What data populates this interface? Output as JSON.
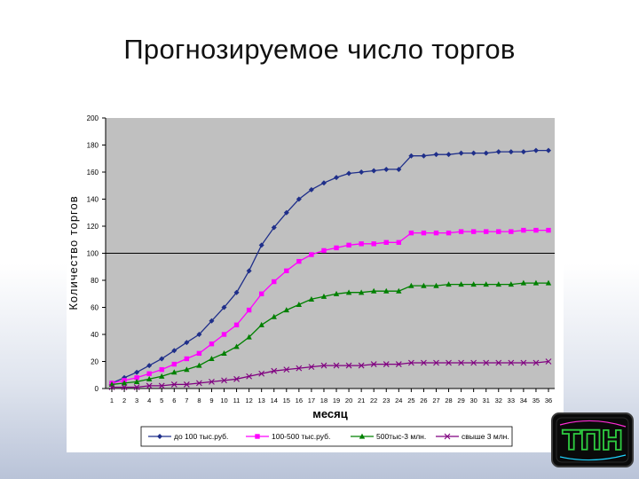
{
  "slide": {
    "title": "Прогнозируемое число торгов"
  },
  "chart_data": {
    "type": "line",
    "title": "Прогнозируемое число торгов",
    "xlabel": "месяц",
    "ylabel": "Количество торгов",
    "ylim": [
      0,
      200
    ],
    "yticks": [
      0,
      20,
      40,
      60,
      80,
      100,
      120,
      140,
      160,
      180,
      200
    ],
    "grid": "reference line at 100",
    "legend": "bottom",
    "x": [
      1,
      2,
      3,
      4,
      5,
      6,
      7,
      8,
      9,
      10,
      11,
      12,
      13,
      14,
      15,
      16,
      17,
      18,
      19,
      20,
      21,
      22,
      23,
      24,
      25,
      26,
      27,
      28,
      29,
      30,
      31,
      32,
      33,
      34,
      35,
      36
    ],
    "series": [
      {
        "name": "до 100 тыс.руб.",
        "color": "#1f2f8a",
        "marker": "diamond",
        "values": [
          4,
          8,
          12,
          17,
          22,
          28,
          34,
          40,
          50,
          60,
          71,
          87,
          106,
          119,
          130,
          140,
          147,
          152,
          156,
          159,
          160,
          161,
          162,
          162,
          172,
          172,
          173,
          173,
          174,
          174,
          174,
          175,
          175,
          175,
          176,
          176
        ]
      },
      {
        "name": "100-500 тыс.руб.",
        "color": "#ff00ff",
        "marker": "square",
        "values": [
          4,
          6,
          8,
          11,
          14,
          18,
          22,
          26,
          33,
          40,
          47,
          58,
          70,
          79,
          87,
          94,
          99,
          102,
          104,
          106,
          107,
          107,
          108,
          108,
          115,
          115,
          115,
          115,
          116,
          116,
          116,
          116,
          116,
          117,
          117,
          117
        ]
      },
      {
        "name": "500тыс-3 млн.",
        "color": "#008000",
        "marker": "triangle",
        "values": [
          3,
          4,
          5,
          7,
          9,
          12,
          14,
          17,
          22,
          26,
          31,
          38,
          47,
          53,
          58,
          62,
          66,
          68,
          70,
          71,
          71,
          72,
          72,
          72,
          76,
          76,
          76,
          77,
          77,
          77,
          77,
          77,
          77,
          78,
          78,
          78
        ]
      },
      {
        "name": "свыше 3 млн.",
        "color": "#800080",
        "marker": "x",
        "values": [
          1,
          1,
          1,
          2,
          2,
          3,
          3,
          4,
          5,
          6,
          7,
          9,
          11,
          13,
          14,
          15,
          16,
          17,
          17,
          17,
          17,
          18,
          18,
          18,
          19,
          19,
          19,
          19,
          19,
          19,
          19,
          19,
          19,
          19,
          19,
          20
        ]
      }
    ]
  },
  "logo": {
    "text": "ТПН"
  }
}
